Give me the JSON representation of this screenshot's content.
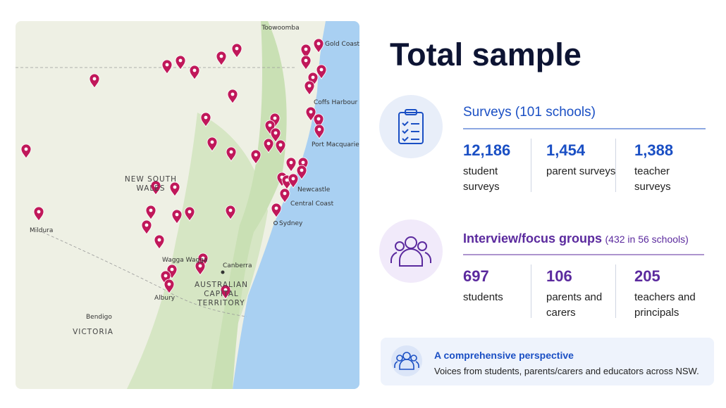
{
  "title": "Total sample",
  "map": {
    "labels": [
      "Toowoomba",
      "Gold Coast",
      "Coffs Harbour",
      "Port Macquarie",
      "Newcastle",
      "Central Coast",
      "Sydney",
      [
        "NEW SOUTH",
        "WALES"
      ],
      "Mildura",
      "Wagga Wagga",
      "Canberra",
      [
        "AUSTRALIAN",
        "CAPITAL",
        "TERRITORY"
      ],
      "Albury",
      "Bendigo",
      "VICTORIA"
    ]
  },
  "surveys": {
    "heading": "Surveys (101 schools)",
    "stats": [
      {
        "value": "12,186",
        "label": "student surveys"
      },
      {
        "value": "1,454",
        "label": "parent surveys"
      },
      {
        "value": "1,388",
        "label": "teacher surveys"
      }
    ]
  },
  "interviews": {
    "heading": "Interview/focus groups",
    "subheading": "(432 in 56 schools)",
    "stats": [
      {
        "value": "697",
        "label": "students"
      },
      {
        "value": "106",
        "label": "parents and carers"
      },
      {
        "value": "205",
        "label": "teachers and principals"
      }
    ]
  },
  "callout": {
    "title": "A comprehensive perspective",
    "text": "Voices from students, parents/carers and educators across NSW."
  }
}
